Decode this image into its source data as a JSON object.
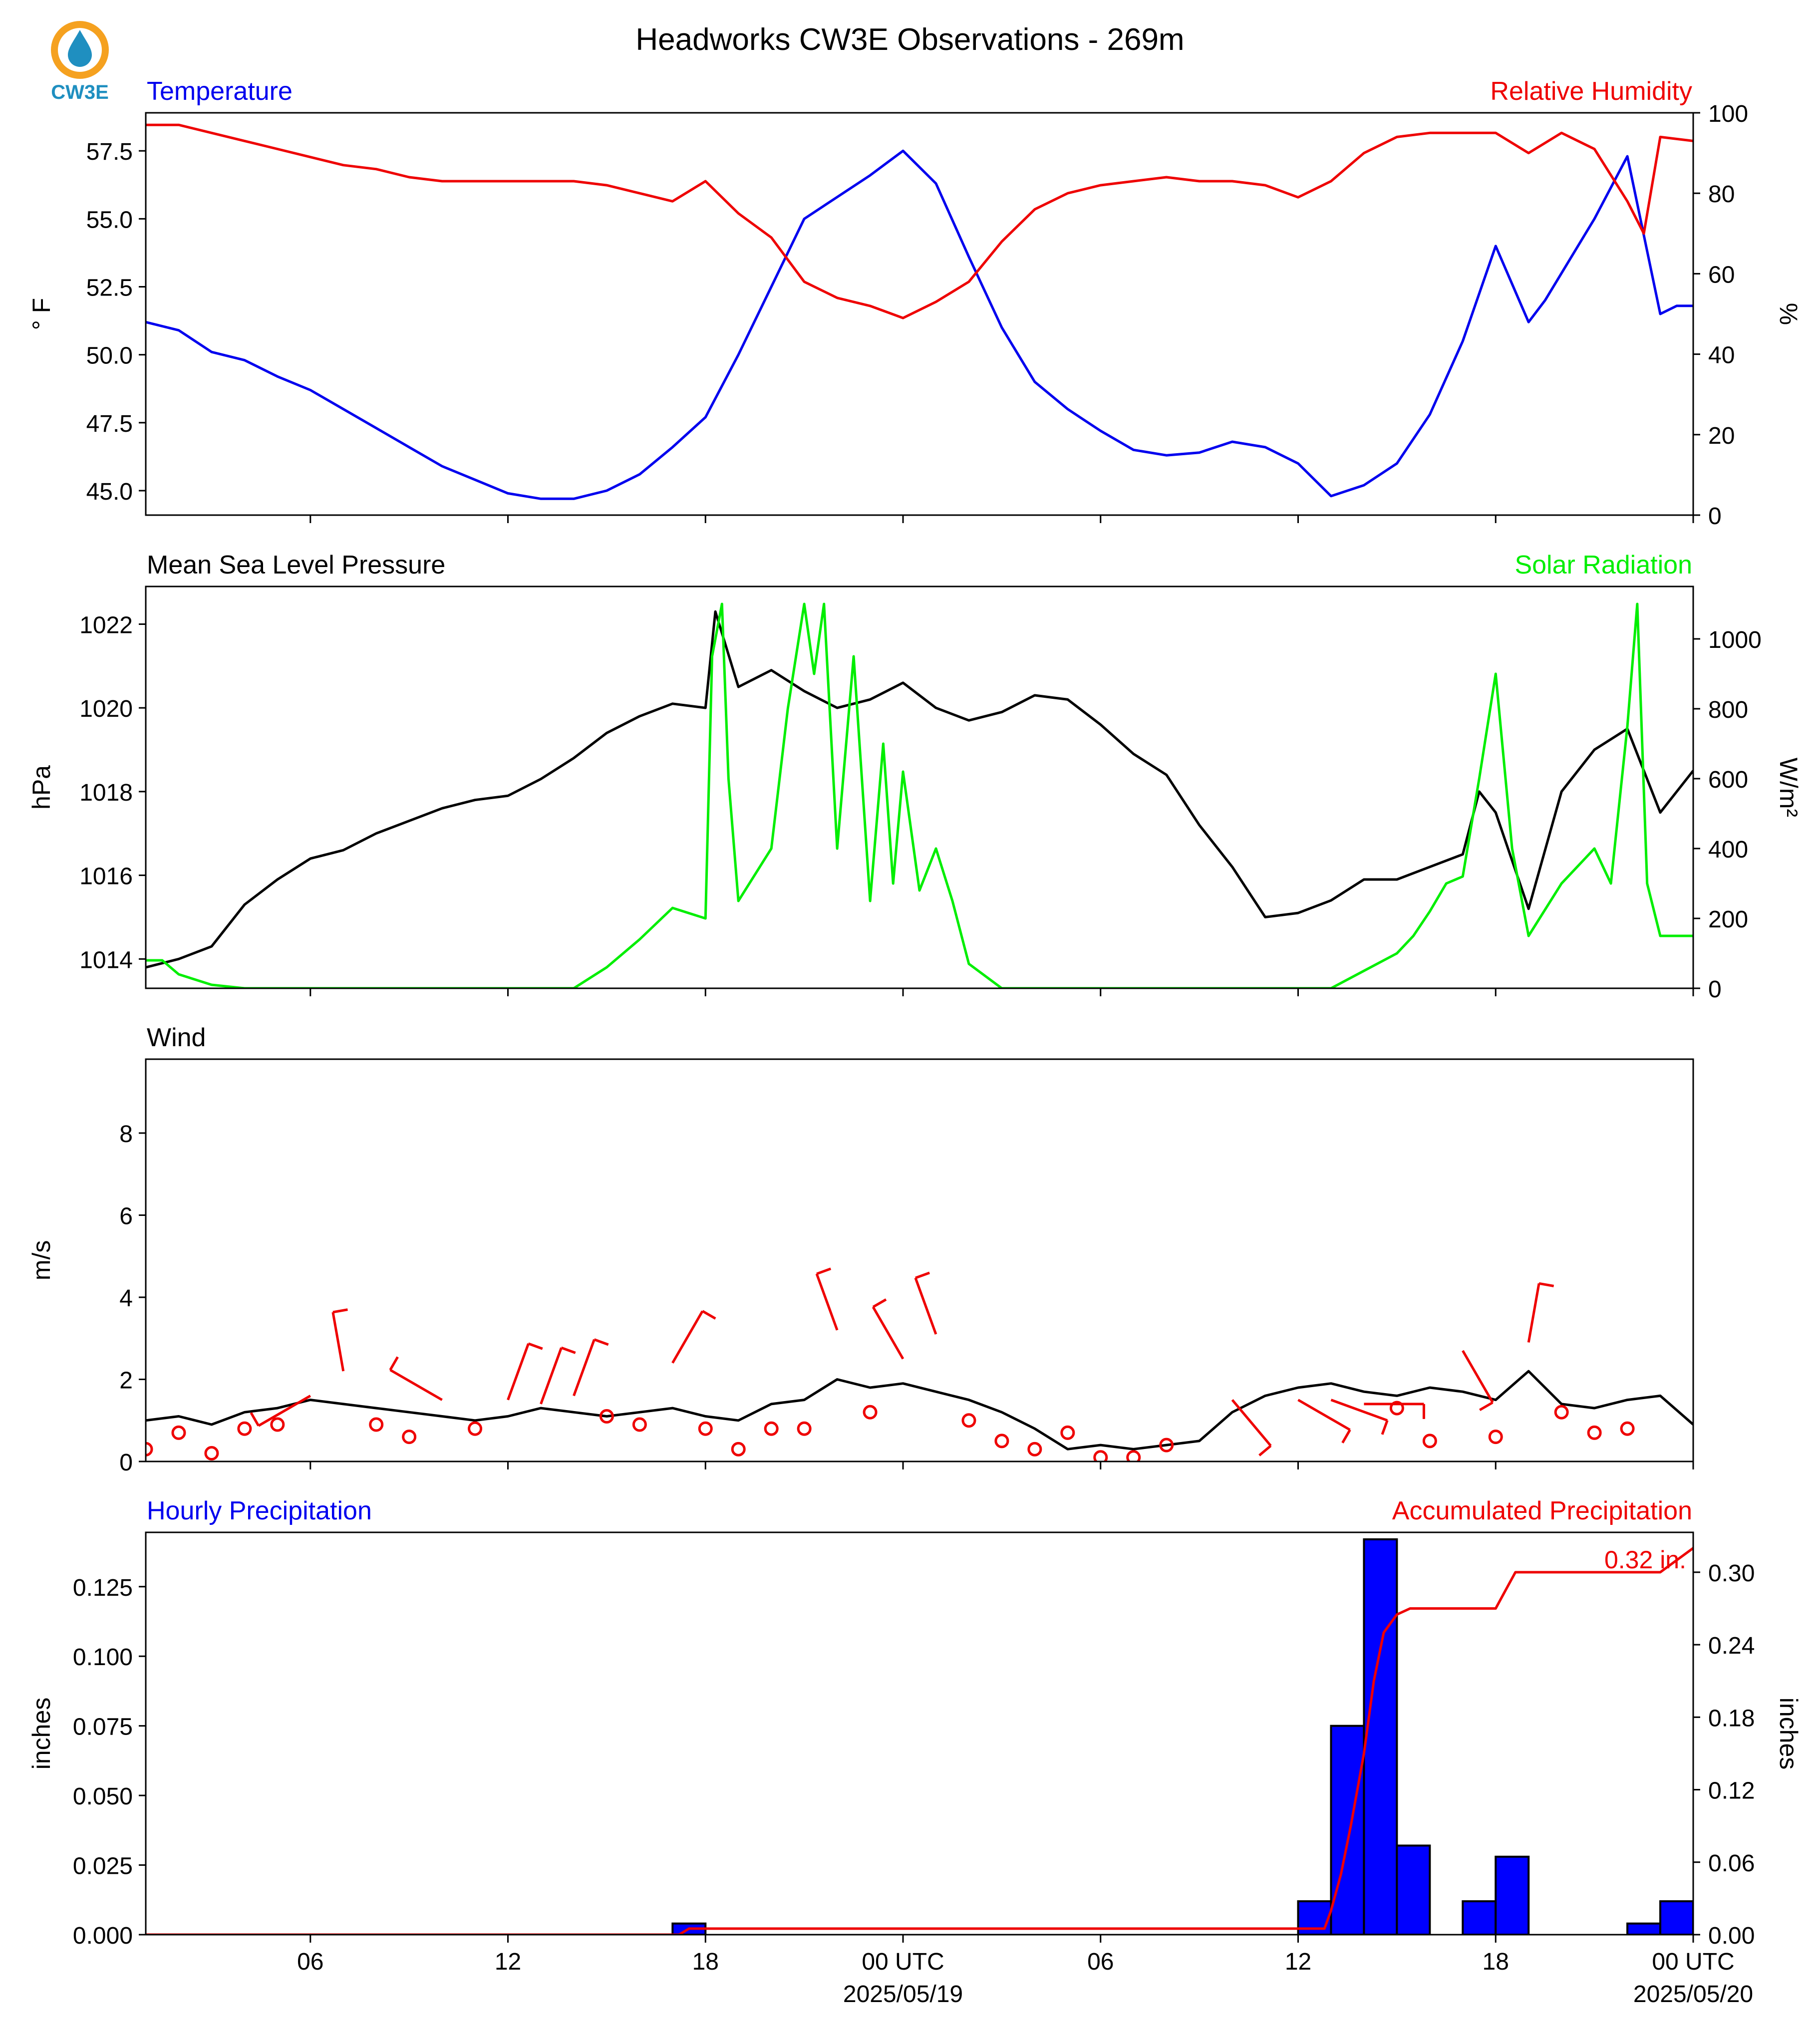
{
  "logo": {
    "text": "CW3E",
    "colors": {
      "ring": "#f5a11f",
      "drop": "#1f8fc0",
      "text": "#1f8fc0"
    }
  },
  "title": "Headworks CW3E Observations - 269m",
  "colors": {
    "blue": "#0000ee",
    "red": "#ee0000",
    "green": "#00ee00",
    "black": "#000000",
    "bar_fill": "#0000ff"
  },
  "time_axis": {
    "start_hour": 0,
    "end_hour": 47,
    "ticks": [
      {
        "h": 5,
        "label": "06"
      },
      {
        "h": 11,
        "label": "12"
      },
      {
        "h": 17,
        "label": "18"
      },
      {
        "h": 23,
        "label": "00 UTC",
        "date": "2025/05/19"
      },
      {
        "h": 29,
        "label": "06"
      },
      {
        "h": 35,
        "label": "12"
      },
      {
        "h": 41,
        "label": "18"
      },
      {
        "h": 47,
        "label": "00 UTC",
        "date": "2025/05/20"
      }
    ]
  },
  "chart_data": [
    {
      "type": "line",
      "left_title": "Temperature",
      "right_title": "Relative Humidity",
      "ylabel": "° F",
      "y2label": "%",
      "ylim": [
        44.1,
        58.9
      ],
      "yticks": [
        "45.0",
        "47.5",
        "50.0",
        "52.5",
        "55.0",
        "57.5"
      ],
      "y2lim": [
        0,
        100
      ],
      "y2ticks": [
        "0",
        "20",
        "40",
        "60",
        "80",
        "100"
      ],
      "series": [
        {
          "name": "Temperature",
          "axis": "left",
          "color": "blue",
          "x": [
            0,
            1,
            2,
            3,
            4,
            5,
            6,
            7,
            8,
            9,
            10,
            11,
            12,
            13,
            14,
            15,
            16,
            17,
            18,
            19,
            20,
            21,
            22,
            23,
            24,
            25,
            26,
            27,
            28,
            29,
            30,
            31,
            32,
            33,
            34,
            35,
            36,
            37,
            38,
            39,
            40,
            41,
            42,
            42.5,
            43,
            44,
            45,
            46,
            46.5,
            47
          ],
          "y": [
            51.2,
            50.9,
            50.1,
            49.8,
            49.2,
            48.7,
            48.0,
            47.3,
            46.6,
            45.9,
            45.4,
            44.9,
            44.7,
            44.7,
            45.0,
            45.6,
            46.6,
            47.7,
            50.0,
            52.5,
            55.0,
            55.8,
            56.6,
            57.5,
            56.3,
            53.6,
            51.0,
            49.0,
            48.0,
            47.2,
            46.5,
            46.3,
            46.4,
            46.8,
            46.6,
            46.0,
            44.8,
            45.2,
            46.0,
            47.8,
            50.5,
            54.0,
            51.2,
            52.0,
            53.0,
            55.0,
            57.3,
            51.5,
            51.8,
            51.8
          ]
        },
        {
          "name": "Relative Humidity",
          "axis": "right",
          "color": "red",
          "x": [
            0,
            1,
            2,
            3,
            4,
            5,
            6,
            7,
            8,
            9,
            10,
            11,
            12,
            13,
            14,
            15,
            16,
            17,
            18,
            19,
            20,
            21,
            22,
            23,
            24,
            25,
            26,
            27,
            28,
            29,
            30,
            31,
            32,
            33,
            34,
            35,
            36,
            37,
            38,
            39,
            40,
            41,
            42,
            43,
            44,
            45,
            45.5,
            46,
            47
          ],
          "y": [
            97,
            97,
            95,
            93,
            91,
            89,
            87,
            86,
            84,
            83,
            83,
            83,
            83,
            83,
            82,
            80,
            78,
            83,
            75,
            69,
            58,
            54,
            52,
            49,
            53,
            58,
            68,
            76,
            80,
            82,
            83,
            84,
            83,
            83,
            82,
            79,
            83,
            90,
            94,
            95,
            95,
            95,
            90,
            95,
            91,
            78,
            70,
            94,
            93
          ]
        }
      ]
    },
    {
      "type": "line",
      "left_title": "Mean Sea Level Pressure",
      "right_title": "Solar Radiation",
      "ylabel": "hPa",
      "y2label": "W/m²",
      "ylim": [
        1013.3,
        1022.9
      ],
      "yticks": [
        "1014",
        "1016",
        "1018",
        "1020",
        "1022"
      ],
      "y2lim": [
        0,
        1150
      ],
      "y2ticks": [
        "0",
        "200",
        "400",
        "600",
        "800",
        "1000"
      ],
      "series": [
        {
          "name": "Mean Sea Level Pressure",
          "axis": "left",
          "color": "black",
          "x": [
            0,
            1,
            2,
            3,
            4,
            5,
            6,
            7,
            8,
            9,
            10,
            11,
            12,
            13,
            14,
            15,
            16,
            17,
            17.3,
            18,
            19,
            20,
            21,
            22,
            23,
            24,
            25,
            26,
            27,
            28,
            29,
            30,
            31,
            32,
            33,
            34,
            35,
            36,
            37,
            38,
            39,
            40,
            40.5,
            41,
            42,
            43,
            44,
            45,
            46,
            47
          ],
          "y": [
            1013.8,
            1014.0,
            1014.3,
            1015.3,
            1015.9,
            1016.4,
            1016.6,
            1017.0,
            1017.3,
            1017.6,
            1017.8,
            1017.9,
            1018.3,
            1018.8,
            1019.4,
            1019.8,
            1020.1,
            1020.0,
            1022.3,
            1020.5,
            1020.9,
            1020.4,
            1020.0,
            1020.2,
            1020.6,
            1020.0,
            1019.7,
            1019.9,
            1020.3,
            1020.2,
            1019.6,
            1018.9,
            1018.4,
            1017.2,
            1016.2,
            1015.0,
            1015.1,
            1015.4,
            1015.9,
            1015.9,
            1016.2,
            1016.5,
            1018.0,
            1017.5,
            1015.2,
            1018.0,
            1019.0,
            1019.5,
            1017.5,
            1018.5
          ]
        },
        {
          "name": "Solar Radiation",
          "axis": "right",
          "color": "green",
          "x": [
            0,
            0.5,
            1,
            2,
            3,
            5,
            8,
            11,
            12,
            13,
            14,
            15,
            16,
            17,
            17.2,
            17.5,
            17.7,
            18,
            19,
            19.5,
            20,
            20.3,
            20.6,
            21,
            21.5,
            22,
            22.4,
            22.7,
            23,
            23.5,
            24,
            24.5,
            25,
            26,
            27,
            35,
            36,
            37,
            38,
            38.5,
            39,
            39.5,
            40,
            40.5,
            41,
            41.5,
            42,
            43,
            44,
            44.5,
            45,
            45.3,
            45.6,
            46,
            46.5,
            47
          ],
          "y": [
            80,
            80,
            40,
            10,
            0,
            0,
            0,
            0,
            0,
            0,
            60,
            140,
            230,
            200,
            950,
            1100,
            600,
            250,
            400,
            800,
            1100,
            900,
            1100,
            400,
            950,
            250,
            700,
            300,
            620,
            280,
            400,
            250,
            70,
            0,
            0,
            0,
            0,
            50,
            100,
            150,
            220,
            300,
            320,
            600,
            900,
            400,
            150,
            300,
            400,
            300,
            750,
            1100,
            300,
            150,
            150,
            150
          ]
        }
      ]
    },
    {
      "type": "line",
      "left_title": "Wind",
      "ylabel": "m/s",
      "ylim": [
        0,
        9.8
      ],
      "yticks": [
        "0",
        "2",
        "4",
        "6",
        "8"
      ],
      "series": [
        {
          "name": "Wind",
          "axis": "left",
          "color": "black",
          "x": [
            0,
            1,
            2,
            3,
            4,
            5,
            6,
            7,
            8,
            9,
            10,
            11,
            12,
            13,
            14,
            15,
            16,
            17,
            18,
            19,
            20,
            21,
            22,
            23,
            24,
            25,
            26,
            27,
            28,
            29,
            30,
            31,
            32,
            33,
            34,
            35,
            36,
            37,
            38,
            39,
            40,
            41,
            42,
            43,
            44,
            45,
            46,
            47
          ],
          "y": [
            1.0,
            1.1,
            0.9,
            1.2,
            1.3,
            1.5,
            1.4,
            1.3,
            1.2,
            1.1,
            1.0,
            1.1,
            1.3,
            1.2,
            1.1,
            1.2,
            1.3,
            1.1,
            1.0,
            1.4,
            1.5,
            2.0,
            1.8,
            1.9,
            1.7,
            1.5,
            1.2,
            0.8,
            0.3,
            0.4,
            0.3,
            0.4,
            0.5,
            1.2,
            1.6,
            1.8,
            1.9,
            1.7,
            1.6,
            1.8,
            1.7,
            1.5,
            2.2,
            1.4,
            1.3,
            1.5,
            1.6,
            0.9
          ]
        }
      ],
      "barbs": {
        "color": "red",
        "points": [
          {
            "h": 0,
            "v": 0.3,
            "calm": true
          },
          {
            "h": 1,
            "v": 0.7,
            "calm": true
          },
          {
            "h": 2,
            "v": 0.2,
            "calm": true
          },
          {
            "h": 3,
            "v": 0.8,
            "calm": true
          },
          {
            "h": 4,
            "v": 0.9,
            "calm": true
          },
          {
            "h": 5,
            "v": 1.6,
            "dir": 240,
            "barbs": 1
          },
          {
            "h": 6,
            "v": 2.2,
            "dir": 350,
            "barbs": 1
          },
          {
            "h": 7,
            "v": 0.9,
            "calm": true
          },
          {
            "h": 8,
            "v": 0.6,
            "calm": true
          },
          {
            "h": 9,
            "v": 1.5,
            "dir": 300,
            "barbs": 1
          },
          {
            "h": 10,
            "v": 0.8,
            "calm": true
          },
          {
            "h": 11,
            "v": 1.5,
            "dir": 20,
            "barbs": 1
          },
          {
            "h": 12,
            "v": 1.4,
            "dir": 20,
            "barbs": 1
          },
          {
            "h": 13,
            "v": 1.6,
            "dir": 20,
            "barbs": 1
          },
          {
            "h": 14,
            "v": 1.1,
            "calm": true
          },
          {
            "h": 15,
            "v": 0.9,
            "calm": true
          },
          {
            "h": 16,
            "v": 2.4,
            "dir": 30,
            "barbs": 1
          },
          {
            "h": 17,
            "v": 0.8,
            "calm": true
          },
          {
            "h": 18,
            "v": 0.3,
            "calm": true
          },
          {
            "h": 19,
            "v": 0.8,
            "calm": true
          },
          {
            "h": 20,
            "v": 0.8,
            "calm": true
          },
          {
            "h": 21,
            "v": 3.2,
            "dir": 340,
            "barbs": 1
          },
          {
            "h": 22,
            "v": 1.2,
            "calm": true
          },
          {
            "h": 23,
            "v": 2.5,
            "dir": 330,
            "barbs": 1
          },
          {
            "h": 24,
            "v": 3.1,
            "dir": 340,
            "barbs": 1
          },
          {
            "h": 25,
            "v": 1.0,
            "calm": true
          },
          {
            "h": 26,
            "v": 0.5,
            "calm": true
          },
          {
            "h": 27,
            "v": 0.3,
            "calm": true
          },
          {
            "h": 28,
            "v": 0.7,
            "calm": true
          },
          {
            "h": 29,
            "v": 0.1,
            "calm": true
          },
          {
            "h": 30,
            "v": 0.1,
            "calm": true
          },
          {
            "h": 31,
            "v": 0.4,
            "calm": true
          },
          {
            "h": 33,
            "v": 1.5,
            "dir": 140,
            "barbs": 1
          },
          {
            "h": 35,
            "v": 1.5,
            "dir": 120,
            "barbs": 1
          },
          {
            "h": 36,
            "v": 1.5,
            "dir": 110,
            "barbs": 1
          },
          {
            "h": 37,
            "v": 1.4,
            "dir": 90,
            "barbs": 1
          },
          {
            "h": 38,
            "v": 1.3,
            "calm": true
          },
          {
            "h": 39,
            "v": 0.5,
            "calm": true
          },
          {
            "h": 40,
            "v": 2.7,
            "dir": 150,
            "barbs": 1
          },
          {
            "h": 41,
            "v": 0.6,
            "calm": true
          },
          {
            "h": 42,
            "v": 2.9,
            "dir": 10,
            "barbs": 1
          },
          {
            "h": 43,
            "v": 1.2,
            "calm": true
          },
          {
            "h": 44,
            "v": 0.7,
            "calm": true
          },
          {
            "h": 45,
            "v": 0.8,
            "calm": true
          }
        ]
      }
    },
    {
      "type": "bar",
      "left_title": "Hourly Precipitation",
      "right_title": "Accumulated Precipitation",
      "ylabel": "inches",
      "y2label": "inches",
      "ylim": [
        0,
        0.1445
      ],
      "yticks": [
        "0.000",
        "0.025",
        "0.050",
        "0.075",
        "0.100",
        "0.125"
      ],
      "y2lim": [
        0,
        0.333
      ],
      "y2ticks": [
        "0.00",
        "0.06",
        "0.12",
        "0.18",
        "0.24",
        "0.30"
      ],
      "annotation": "0.32 in.",
      "bars": {
        "name": "Hourly Precipitation",
        "hours": [
          16,
          35,
          36,
          37,
          38,
          40,
          41,
          45,
          46
        ],
        "values": [
          0.004,
          0.012,
          0.075,
          0.142,
          0.032,
          0.012,
          0.028,
          0.004,
          0.012
        ]
      },
      "accumulated": {
        "name": "Accumulated Precipitation",
        "color": "red",
        "x": [
          0,
          16.2,
          16.5,
          35.8,
          36.0,
          36.3,
          36.6,
          37.0,
          37.3,
          37.6,
          38.0,
          38.4,
          41.0,
          41.3,
          41.6,
          46.0,
          47.0
        ],
        "y": [
          0,
          0,
          0.005,
          0.005,
          0.02,
          0.05,
          0.09,
          0.15,
          0.21,
          0.25,
          0.265,
          0.27,
          0.27,
          0.285,
          0.3,
          0.3,
          0.32
        ]
      }
    }
  ]
}
